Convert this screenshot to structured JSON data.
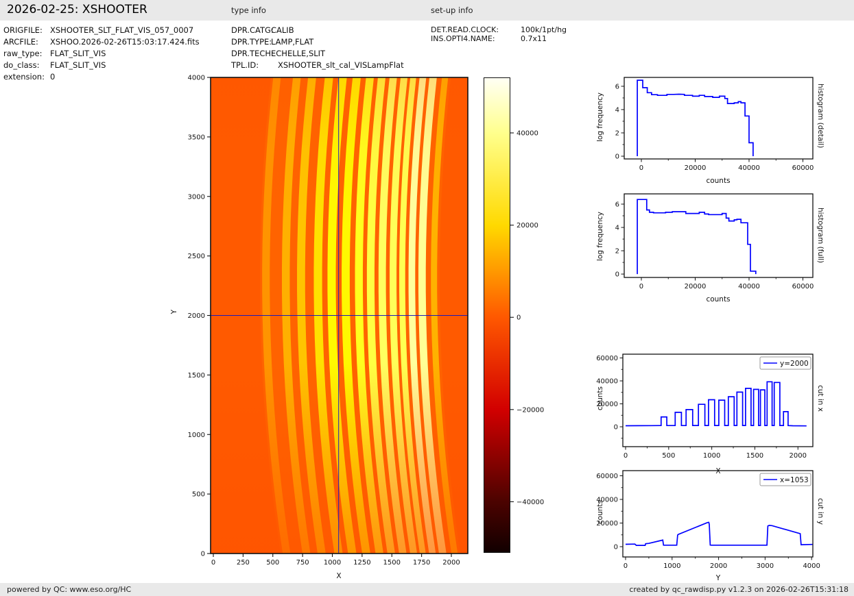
{
  "header": {
    "title": "2026-02-25: XSHOOTER"
  },
  "sections": {
    "type_info": "type info",
    "setup_info": "set-up info"
  },
  "meta_left": [
    [
      "ORIGFILE:",
      "XSHOOTER_SLT_FLAT_VIS_057_0007"
    ],
    [
      "ARCFILE:",
      "XSHOO.2026-02-26T15:03:17.424.fits"
    ],
    [
      "raw_type:",
      "FLAT_SLIT_VIS"
    ],
    [
      "do_class:",
      "FLAT_SLIT_VIS"
    ],
    [
      "extension:",
      "0"
    ]
  ],
  "type_info": [
    [
      "DPR.CATG:",
      "CALIB"
    ],
    [
      "DPR.TYPE:",
      "LAMP,FLAT"
    ],
    [
      "DPR.TECH:",
      "ECHELLE,SLIT"
    ],
    [
      "TPL.ID:",
      "XSHOOTER_slt_cal_VISLampFlat"
    ]
  ],
  "setup_info": [
    [
      "DET.READ.CLOCK:",
      "100k/1pt/hg"
    ],
    [
      "INS.OPTI4.NAME:",
      "0.7x11"
    ]
  ],
  "footer": {
    "left": "powered by QC: www.eso.org/HC",
    "right": "created by qc_rawdisp.py v1.2.3 on 2026-02-26T15:31:18"
  },
  "colors": {
    "line": "#0000ff",
    "crosshair": "#1b1bbe",
    "axis": "#111111",
    "image_bg": "#ff5a00",
    "image_band": "#ff6300"
  },
  "colorbar": {
    "ticks": [
      [
        "40000",
        0.1167
      ],
      [
        "20000",
        0.3107
      ],
      [
        "0",
        0.5046
      ],
      [
        "−20000",
        0.6986
      ],
      [
        "−40000",
        0.8925
      ]
    ],
    "gradient": [
      [
        0,
        "#fffff4"
      ],
      [
        0.1167,
        "#ffff8c"
      ],
      [
        0.3107,
        "#ffd900"
      ],
      [
        0.5046,
        "#ff5800"
      ],
      [
        0.6986,
        "#d20000"
      ],
      [
        0.8925,
        "#4c0300"
      ],
      [
        1,
        "#120000"
      ]
    ]
  },
  "chart_data": {
    "main_image": {
      "type": "heatmap",
      "xlabel": "X",
      "ylabel": "Y",
      "xlim": [
        0,
        2140
      ],
      "ylim": [
        0,
        4000
      ],
      "xticks": [
        0,
        250,
        500,
        750,
        1000,
        1250,
        1500,
        1750,
        2000
      ],
      "yticks": [
        0,
        500,
        1000,
        1500,
        2000,
        2500,
        3000,
        3500,
        4000
      ],
      "crosshair": {
        "x": 1053,
        "y": 2000
      },
      "orders": [
        {
          "cx": 445,
          "w": 64,
          "peak_counts": 8600,
          "color": "#ff9400"
        },
        {
          "cx": 612,
          "w": 66,
          "peak_counts": 12600,
          "color": "#ffb000"
        },
        {
          "cx": 740,
          "w": 68,
          "peak_counts": 15000,
          "color": "#ffc400"
        },
        {
          "cx": 882,
          "w": 70,
          "peak_counts": 19600,
          "color": "#ffe100"
        },
        {
          "cx": 997,
          "w": 70,
          "peak_counts": 23600,
          "color": "#fff900"
        },
        {
          "cx": 1115,
          "w": 68,
          "peak_counts": 23200,
          "color": "#fff800"
        },
        {
          "cx": 1226,
          "w": 66,
          "peak_counts": 26200,
          "color": "#ffff1e"
        },
        {
          "cx": 1325,
          "w": 64,
          "peak_counts": 30200,
          "color": "#ffff42"
        },
        {
          "cx": 1422,
          "w": 62,
          "peak_counts": 33500,
          "color": "#ffff60"
        },
        {
          "cx": 1513,
          "w": 58,
          "peak_counts": 32600,
          "color": "#ffff58"
        },
        {
          "cx": 1590,
          "w": 50,
          "peak_counts": 32200,
          "color": "#ffff52"
        },
        {
          "cx": 1671,
          "w": 56,
          "peak_counts": 39200,
          "color": "#ffff9e"
        },
        {
          "cx": 1757,
          "w": 62,
          "peak_counts": 38600,
          "color": "#ffff96"
        },
        {
          "cx": 1857,
          "w": 52,
          "peak_counts": 13200,
          "color": "#ffb200"
        }
      ]
    },
    "hist_detail": {
      "type": "line",
      "right_label": "histogram (detail)",
      "ylabel": "log frequency",
      "xlabel": "counts",
      "xticks": [
        0,
        20000,
        40000,
        60000
      ],
      "xticks_minor": [
        10000,
        30000,
        50000
      ],
      "yticks": [
        0,
        2,
        4,
        6
      ],
      "yticks_minor": [
        1,
        3,
        5
      ],
      "points": [
        [
          -1500,
          0
        ],
        [
          -1500,
          6.52
        ],
        [
          500,
          6.52
        ],
        [
          500,
          5.88
        ],
        [
          2200,
          5.88
        ],
        [
          2200,
          5.45
        ],
        [
          3800,
          5.45
        ],
        [
          3800,
          5.28
        ],
        [
          6000,
          5.28
        ],
        [
          6000,
          5.22
        ],
        [
          9500,
          5.22
        ],
        [
          9500,
          5.3
        ],
        [
          12000,
          5.3
        ],
        [
          14000,
          5.32
        ],
        [
          16000,
          5.3
        ],
        [
          16000,
          5.22
        ],
        [
          19000,
          5.22
        ],
        [
          19000,
          5.15
        ],
        [
          21500,
          5.15
        ],
        [
          21500,
          5.22
        ],
        [
          23500,
          5.22
        ],
        [
          23500,
          5.12
        ],
        [
          26500,
          5.12
        ],
        [
          26500,
          5.05
        ],
        [
          29000,
          5.05
        ],
        [
          29000,
          5.15
        ],
        [
          31000,
          5.15
        ],
        [
          31000,
          4.95
        ],
        [
          32000,
          4.95
        ],
        [
          32000,
          4.52
        ],
        [
          34500,
          4.52
        ],
        [
          34500,
          4.58
        ],
        [
          36000,
          4.58
        ],
        [
          36000,
          4.68
        ],
        [
          37000,
          4.68
        ],
        [
          37000,
          4.58
        ],
        [
          38500,
          4.58
        ],
        [
          38500,
          3.45
        ],
        [
          40000,
          3.45
        ],
        [
          40000,
          1.15
        ],
        [
          41500,
          1.15
        ],
        [
          41500,
          0
        ]
      ]
    },
    "hist_full": {
      "type": "line",
      "right_label": "histogram (full)",
      "ylabel": "log frequency",
      "xlabel": "counts",
      "xticks": [
        0,
        20000,
        40000,
        60000
      ],
      "xticks_minor": [
        10000,
        30000,
        50000
      ],
      "yticks": [
        0,
        2,
        4,
        6
      ],
      "yticks_minor": [
        1,
        3,
        5
      ],
      "points": [
        [
          -1500,
          0
        ],
        [
          -1500,
          6.4
        ],
        [
          2000,
          6.4
        ],
        [
          2000,
          5.5
        ],
        [
          3000,
          5.5
        ],
        [
          3000,
          5.3
        ],
        [
          4500,
          5.3
        ],
        [
          4500,
          5.25
        ],
        [
          9000,
          5.25
        ],
        [
          9000,
          5.3
        ],
        [
          11500,
          5.3
        ],
        [
          11500,
          5.35
        ],
        [
          16500,
          5.35
        ],
        [
          16500,
          5.2
        ],
        [
          21500,
          5.2
        ],
        [
          21500,
          5.3
        ],
        [
          23500,
          5.3
        ],
        [
          23500,
          5.15
        ],
        [
          25000,
          5.15
        ],
        [
          25000,
          5.1
        ],
        [
          30000,
          5.1
        ],
        [
          30000,
          5.2
        ],
        [
          31500,
          5.2
        ],
        [
          31500,
          4.8
        ],
        [
          32500,
          4.8
        ],
        [
          32500,
          4.55
        ],
        [
          34500,
          4.55
        ],
        [
          34500,
          4.65
        ],
        [
          35500,
          4.65
        ],
        [
          35500,
          4.7
        ],
        [
          37000,
          4.7
        ],
        [
          37000,
          4.4
        ],
        [
          39500,
          4.4
        ],
        [
          39500,
          2.55
        ],
        [
          40500,
          2.55
        ],
        [
          40500,
          0.25
        ],
        [
          42500,
          0.25
        ],
        [
          42500,
          0
        ]
      ]
    },
    "cut_x": {
      "type": "line",
      "right_label": "cut in x",
      "ylabel": "counts",
      "xlabel": "X",
      "legend": "y=2000",
      "xticks": [
        0,
        500,
        1000,
        1500,
        2000
      ],
      "xticks_minor": [
        250,
        750,
        1250,
        1750
      ],
      "yticks": [
        0,
        20000,
        40000,
        60000
      ],
      "yticks_minor": [
        -10000,
        10000,
        30000,
        50000
      ],
      "points": [
        [
          0,
          900
        ],
        [
          150,
          950
        ],
        [
          300,
          1000
        ],
        [
          405,
          1050
        ],
        [
          412,
          1050
        ],
        [
          412,
          8600
        ],
        [
          478,
          8600
        ],
        [
          478,
          1100
        ],
        [
          575,
          1100
        ],
        [
          575,
          12600
        ],
        [
          648,
          12600
        ],
        [
          648,
          1100
        ],
        [
          702,
          1100
        ],
        [
          702,
          15000
        ],
        [
          778,
          15000
        ],
        [
          778,
          1150
        ],
        [
          845,
          1150
        ],
        [
          845,
          19600
        ],
        [
          920,
          19600
        ],
        [
          920,
          1150
        ],
        [
          962,
          1150
        ],
        [
          962,
          23600
        ],
        [
          1033,
          23600
        ],
        [
          1033,
          1150
        ],
        [
          1082,
          1150
        ],
        [
          1082,
          23200
        ],
        [
          1150,
          23200
        ],
        [
          1150,
          1150
        ],
        [
          1192,
          1150
        ],
        [
          1192,
          26200
        ],
        [
          1260,
          26200
        ],
        [
          1260,
          1150
        ],
        [
          1292,
          1150
        ],
        [
          1292,
          30200
        ],
        [
          1358,
          30200
        ],
        [
          1358,
          1150
        ],
        [
          1392,
          1150
        ],
        [
          1392,
          33500
        ],
        [
          1456,
          33500
        ],
        [
          1456,
          1150
        ],
        [
          1485,
          1150
        ],
        [
          1485,
          32600
        ],
        [
          1543,
          32600
        ],
        [
          1543,
          1150
        ],
        [
          1565,
          1150
        ],
        [
          1565,
          32200
        ],
        [
          1616,
          32200
        ],
        [
          1616,
          1150
        ],
        [
          1642,
          1150
        ],
        [
          1642,
          39200
        ],
        [
          1700,
          39200
        ],
        [
          1700,
          1150
        ],
        [
          1725,
          1150
        ],
        [
          1725,
          38600
        ],
        [
          1790,
          38600
        ],
        [
          1790,
          1150
        ],
        [
          1832,
          1150
        ],
        [
          1832,
          13200
        ],
        [
          1886,
          13200
        ],
        [
          1886,
          1100
        ],
        [
          1940,
          900
        ],
        [
          2100,
          800
        ]
      ]
    },
    "cut_y": {
      "type": "line",
      "right_label": "cut in y",
      "ylabel": "counts",
      "xlabel": "Y",
      "legend": "x=1053",
      "xticks": [
        0,
        1000,
        2000,
        3000,
        4000
      ],
      "xticks_minor": [
        500,
        1500,
        2500,
        3500
      ],
      "yticks": [
        0,
        20000,
        40000,
        60000
      ],
      "yticks_minor": [
        10000,
        30000,
        50000
      ],
      "points": [
        [
          0,
          2000
        ],
        [
          200,
          2200
        ],
        [
          230,
          1100
        ],
        [
          420,
          1100
        ],
        [
          430,
          2500
        ],
        [
          500,
          2800
        ],
        [
          790,
          5500
        ],
        [
          800,
          5600
        ],
        [
          815,
          1300
        ],
        [
          1100,
          1250
        ],
        [
          1120,
          9800
        ],
        [
          1130,
          10300
        ],
        [
          1760,
          20400
        ],
        [
          1790,
          20600
        ],
        [
          1800,
          19000
        ],
        [
          1820,
          1400
        ],
        [
          1840,
          1250
        ],
        [
          3040,
          1300
        ],
        [
          3060,
          17500
        ],
        [
          3090,
          18000
        ],
        [
          3150,
          17800
        ],
        [
          3740,
          11200
        ],
        [
          3755,
          11000
        ],
        [
          3775,
          1600
        ],
        [
          3800,
          1700
        ],
        [
          4020,
          1900
        ]
      ]
    }
  }
}
